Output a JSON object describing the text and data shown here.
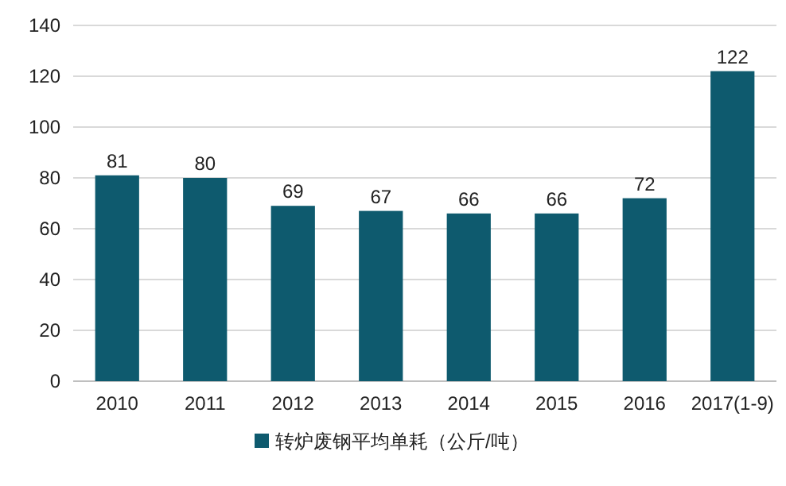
{
  "chart_data": {
    "type": "bar",
    "categories": [
      "2010",
      "2011",
      "2012",
      "2013",
      "2014",
      "2015",
      "2016",
      "2017(1-9)"
    ],
    "series": [
      {
        "name": "转炉废钢平均单耗（公斤/吨）",
        "color": "#0e5a6e",
        "values": [
          81,
          80,
          69,
          67,
          66,
          66,
          72,
          122
        ]
      }
    ],
    "ylim": [
      0,
      140
    ],
    "yticks": [
      0,
      20,
      40,
      60,
      80,
      100,
      120,
      140
    ],
    "grid": "y",
    "legend": "bottom",
    "data_labels": true
  }
}
